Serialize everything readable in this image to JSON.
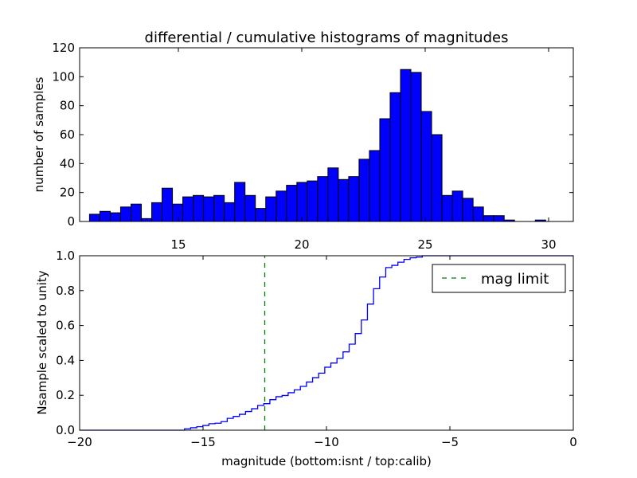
{
  "chart_data": [
    {
      "type": "bar",
      "title": "differential / cumulative histograms of magnitudes",
      "xlabel": "",
      "ylabel": "number of samples",
      "xlim": [
        11,
        31
      ],
      "ylim": [
        0,
        120
      ],
      "xticks": [
        15,
        20,
        25,
        30
      ],
      "yticks": [
        0,
        20,
        40,
        60,
        80,
        100,
        120
      ],
      "bar_color": "#0000ff",
      "bin_start": 11.4,
      "bin_width": 0.42,
      "values": [
        5,
        7,
        6,
        10,
        12,
        2,
        13,
        23,
        12,
        17,
        18,
        17,
        18,
        13,
        27,
        18,
        9,
        17,
        21,
        25,
        27,
        28,
        31,
        37,
        29,
        31,
        43,
        49,
        71,
        89,
        105,
        103,
        76,
        60,
        18,
        21,
        16,
        10,
        4,
        4,
        1,
        0,
        0,
        1
      ]
    },
    {
      "type": "line",
      "title": "",
      "xlabel": "magnitude (bottom:isnt / top:calib)",
      "ylabel": "Nsample scaled to unity",
      "xlim": [
        -20,
        0
      ],
      "ylim": [
        0,
        1.0
      ],
      "xticks": [
        -20,
        -15,
        -10,
        -5,
        0
      ],
      "yticks": [
        0.0,
        0.2,
        0.4,
        0.6,
        0.8,
        1.0
      ],
      "line_color": "#0000ff",
      "step_start": -15.75,
      "step_width": 0.247,
      "values": [
        0.008,
        0.014,
        0.02,
        0.027,
        0.037,
        0.04,
        0.049,
        0.068,
        0.079,
        0.091,
        0.107,
        0.123,
        0.142,
        0.152,
        0.175,
        0.192,
        0.199,
        0.215,
        0.231,
        0.251,
        0.276,
        0.301,
        0.327,
        0.361,
        0.385,
        0.412,
        0.449,
        0.493,
        0.554,
        0.632,
        0.723,
        0.811,
        0.878,
        0.932,
        0.945,
        0.963,
        0.979,
        0.988,
        0.992,
        1.0
      ],
      "vline": {
        "x": -12.5,
        "color": "#007f00",
        "label": "mag limit"
      },
      "legend": {
        "placement": "top-right",
        "entries": [
          "mag limit"
        ]
      }
    }
  ]
}
